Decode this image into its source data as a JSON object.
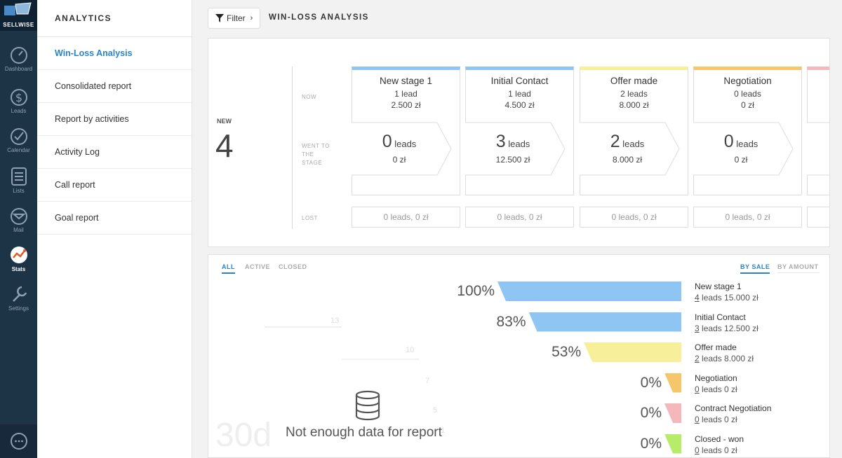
{
  "nav": {
    "logo_text": "SELLWISE",
    "items": [
      {
        "label": "Dashboard",
        "icon": "gauge-icon"
      },
      {
        "label": "Leads",
        "icon": "dollar-icon"
      },
      {
        "label": "Calendar",
        "icon": "check-circle-icon"
      },
      {
        "label": "Lists",
        "icon": "list-icon"
      },
      {
        "label": "Mail",
        "icon": "mail-icon"
      },
      {
        "label": "Stats",
        "icon": "stats-icon",
        "active": true
      },
      {
        "label": "Settings",
        "icon": "wrench-icon"
      }
    ]
  },
  "sidebar": {
    "title": "ANALYTICS",
    "items": [
      {
        "label": "Win-Loss Analysis",
        "active": true
      },
      {
        "label": "Consolidated report"
      },
      {
        "label": "Report by activities"
      },
      {
        "label": "Activity Log"
      },
      {
        "label": "Call report"
      },
      {
        "label": "Goal report"
      }
    ]
  },
  "header": {
    "filter_label": "Filter",
    "title": "WIN-LOSS ANALYSIS"
  },
  "funnel": {
    "new_label": "NEW",
    "new_count": "4",
    "row_labels": {
      "now": "NOW",
      "went": "WENT TO THE STAGE",
      "lost": "LOST"
    },
    "stages": [
      {
        "name": "New stage 1",
        "now_leads": "1 lead",
        "now_amount": "2.500 zł",
        "went_count": "0",
        "went_unit": "leads",
        "went_amount": "0 zł",
        "lost": "0 leads, 0 zł",
        "color": "#8ec5f3"
      },
      {
        "name": "Initial Contact",
        "now_leads": "1 lead",
        "now_amount": "4.500 zł",
        "went_count": "3",
        "went_unit": "leads",
        "went_amount": "12.500 zł",
        "lost": "0 leads, 0 zł",
        "color": "#8ec5f3"
      },
      {
        "name": "Offer made",
        "now_leads": "2 leads",
        "now_amount": "8.000 zł",
        "went_count": "2",
        "went_unit": "leads",
        "went_amount": "8.000 zł",
        "lost": "0 leads, 0 zł",
        "color": "#f7ef9a"
      },
      {
        "name": "Negotiation",
        "now_leads": "0 leads",
        "now_amount": "0 zł",
        "went_count": "0",
        "went_unit": "leads",
        "went_amount": "0 zł",
        "lost": "0 leads, 0 zł",
        "color": "#f5c76a"
      },
      {
        "name": "C",
        "now_leads": "",
        "now_amount": "",
        "went_count": "",
        "went_unit": "",
        "went_amount": "",
        "lost": "",
        "color": "#f4b8bc"
      }
    ]
  },
  "report": {
    "filter_tabs": [
      {
        "label": "ALL",
        "active": true
      },
      {
        "label": "ACTIVE"
      },
      {
        "label": "CLOSED"
      }
    ],
    "sort_tabs": [
      {
        "label": "BY SALE",
        "active": true
      },
      {
        "label": "BY AMOUNT"
      }
    ],
    "no_data_text": "Not enough data for report",
    "ghost_period": "30d",
    "ghost_ticks": [
      "13",
      "10",
      "7",
      "5",
      "1"
    ]
  },
  "chart_data": {
    "type": "bar",
    "orientation": "horizontal",
    "categories": [
      "New stage 1",
      "Initial Contact",
      "Offer made",
      "Negotiation",
      "Contract Negotiation",
      "Closed - won"
    ],
    "values": [
      100,
      83,
      53,
      0,
      0,
      0
    ],
    "labels": [
      "100%",
      "83%",
      "53%",
      "0%",
      "0%",
      "0%"
    ],
    "lead_counts": [
      "4",
      "3",
      "2",
      "0",
      "0",
      "0"
    ],
    "lead_suffixes": [
      " leads 15.000 zł",
      " leads 12.500 zł",
      " leads 8.000 zł",
      " leads 0 zł",
      " leads 0 zł",
      " leads 0 zł"
    ],
    "colors": [
      "#8ec5f3",
      "#8ec5f3",
      "#f7ef9a",
      "#f5c76a",
      "#f4b8bc",
      "#b6ec6a"
    ]
  }
}
